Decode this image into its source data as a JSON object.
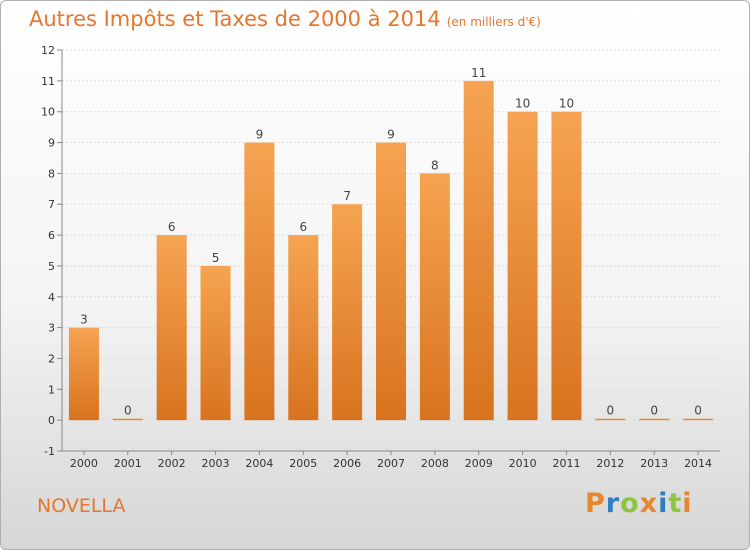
{
  "header": {
    "title": "Autres Impôts et Taxes de 2000 à 2014",
    "subtitle": "(en milliers d'€)"
  },
  "footer": {
    "commune": "NOVELLA",
    "logo": "Proxiti",
    "logo_colors": [
      "#e9862b",
      "#2e7fc1",
      "#8cc63f",
      "#e9862b",
      "#2e7fc1",
      "#8cc63f",
      "#e9862b"
    ]
  },
  "chart_data": {
    "type": "bar",
    "title": "Autres Impôts et Taxes de 2000 à 2014",
    "subtitle": "(en milliers d'€)",
    "categories": [
      "2000",
      "2001",
      "2002",
      "2003",
      "2004",
      "2005",
      "2006",
      "2007",
      "2008",
      "2009",
      "2010",
      "2011",
      "2012",
      "2013",
      "2014"
    ],
    "values": [
      3,
      0,
      6,
      5,
      9,
      6,
      7,
      9,
      8,
      11,
      10,
      10,
      0,
      0,
      0
    ],
    "ylim": [
      -1,
      12
    ],
    "yticks": [
      "-1",
      "0",
      "1",
      "2",
      "3",
      "4",
      "5",
      "6",
      "7",
      "8",
      "9",
      "10",
      "11",
      "12"
    ],
    "grid": true,
    "bar_color_top": "#f6a452",
    "bar_color_bottom": "#d8731f",
    "text_color": "#e6762a"
  }
}
